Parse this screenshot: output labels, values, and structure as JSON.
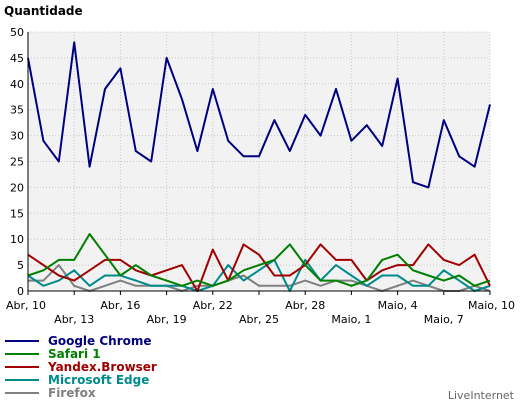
{
  "chart_data": {
    "type": "line",
    "ylabel": "Quantidade",
    "ylim": [
      0,
      50
    ],
    "yticks": [
      0,
      5,
      10,
      15,
      20,
      25,
      30,
      35,
      40,
      45,
      50
    ],
    "grid": true,
    "legend_position": "bottom-left",
    "x_tick_labels": [
      {
        "index": 0,
        "label": "Abr, 10",
        "row": 1
      },
      {
        "index": 3,
        "label": "Abr, 13",
        "row": 2
      },
      {
        "index": 6,
        "label": "Abr, 16",
        "row": 1
      },
      {
        "index": 9,
        "label": "Abr, 19",
        "row": 2
      },
      {
        "index": 12,
        "label": "Abr, 22",
        "row": 1
      },
      {
        "index": 15,
        "label": "Abr, 25",
        "row": 2
      },
      {
        "index": 18,
        "label": "Abr, 28",
        "row": 1
      },
      {
        "index": 21,
        "label": "Maio, 1",
        "row": 2
      },
      {
        "index": 24,
        "label": "Maio, 4",
        "row": 1
      },
      {
        "index": 27,
        "label": "Maio, 7",
        "row": 2
      },
      {
        "index": 30,
        "label": "Maio, 10",
        "row": 1
      }
    ],
    "series": [
      {
        "name": "Google Chrome",
        "color": "#000080",
        "values": [
          45,
          29,
          25,
          48,
          24,
          39,
          43,
          27,
          25,
          45,
          37,
          27,
          39,
          29,
          26,
          26,
          33,
          27,
          34,
          30,
          39,
          29,
          32,
          28,
          41,
          21,
          20,
          33,
          26,
          24,
          36
        ]
      },
      {
        "name": "Safari 1",
        "color": "#008000",
        "values": [
          3,
          4,
          6,
          6,
          11,
          7,
          3,
          5,
          3,
          2,
          1,
          2,
          1,
          2,
          4,
          5,
          6,
          9,
          5,
          2,
          2,
          1,
          2,
          6,
          7,
          4,
          3,
          2,
          3,
          1,
          2
        ]
      },
      {
        "name": "Yandex.Browser",
        "color": "#a00000",
        "values": [
          7,
          5,
          3,
          2,
          4,
          6,
          6,
          4,
          3,
          4,
          5,
          0,
          8,
          2,
          9,
          7,
          3,
          3,
          5,
          9,
          6,
          6,
          2,
          4,
          5,
          5,
          9,
          6,
          5,
          7,
          1
        ]
      },
      {
        "name": "Microsoft Edge",
        "color": "#008b8b",
        "values": [
          3,
          1,
          2,
          4,
          1,
          3,
          3,
          2,
          1,
          1,
          1,
          0,
          1,
          5,
          2,
          4,
          6,
          0,
          6,
          2,
          5,
          3,
          1,
          3,
          3,
          1,
          1,
          4,
          2,
          0,
          1
        ]
      },
      {
        "name": "Firefox",
        "color": "#808080",
        "values": [
          2,
          2,
          5,
          1,
          0,
          1,
          2,
          1,
          1,
          1,
          0,
          1,
          1,
          2,
          3,
          1,
          1,
          1,
          2,
          1,
          2,
          2,
          1,
          0,
          1,
          2,
          1,
          0,
          0,
          1,
          0
        ]
      }
    ]
  },
  "branding": "LiveInternet"
}
